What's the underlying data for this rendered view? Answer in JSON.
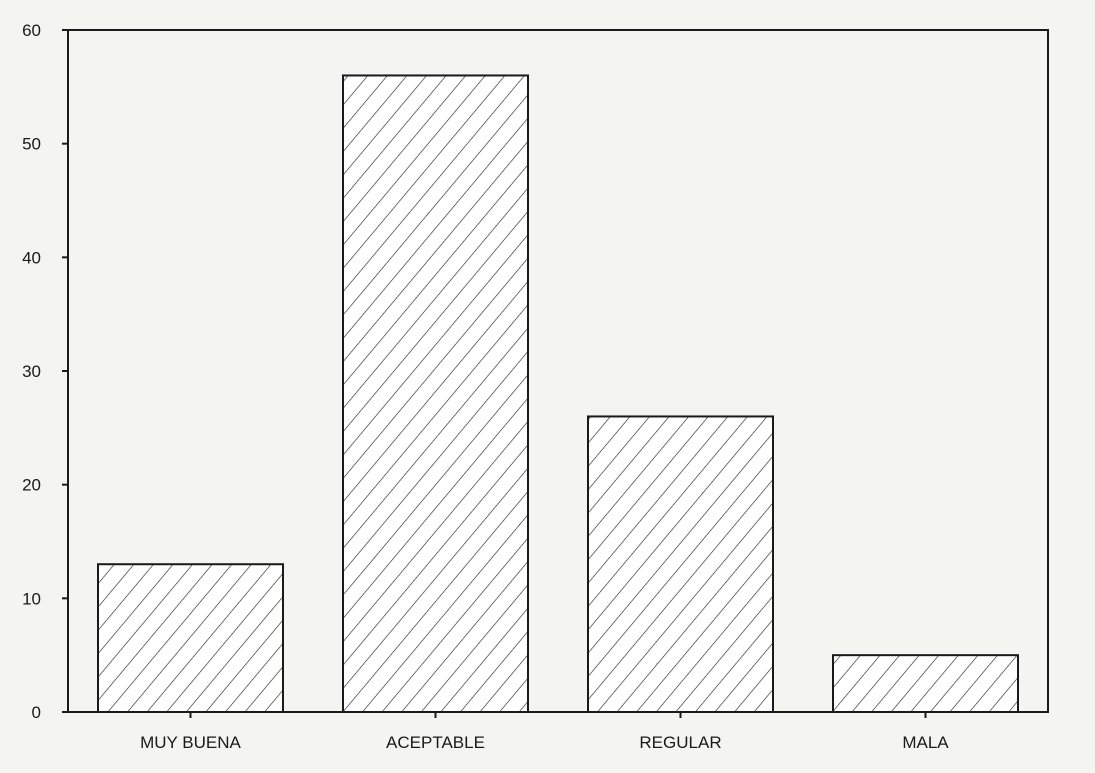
{
  "chart_data": {
    "type": "bar",
    "categories": [
      "MUY BUENA",
      "ACEPTABLE",
      "REGULAR",
      "MALA"
    ],
    "values": [
      13,
      56,
      26,
      5
    ],
    "title": "",
    "xlabel": "",
    "ylabel": "",
    "ylim": [
      0,
      60
    ],
    "yticks": [
      0,
      10,
      20,
      30,
      40,
      50,
      60
    ],
    "grid": false,
    "legend": "none",
    "bar_fill": "diagonal-hatch",
    "colors": {
      "ink": "#1a1a1a",
      "background": "#f4f4f1",
      "bar_fill": "#ffffff"
    }
  }
}
